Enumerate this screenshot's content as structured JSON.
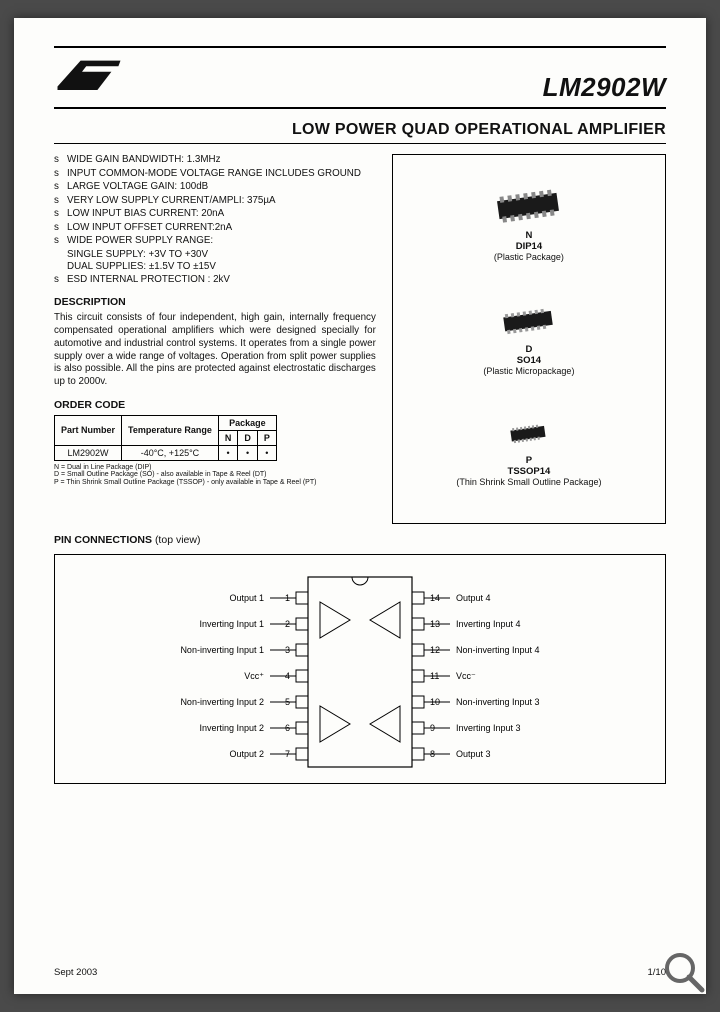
{
  "header": {
    "part_number": "LM2902W",
    "title": "LOW POWER QUAD OPERATIONAL AMPLIFIER"
  },
  "features": [
    "WIDE GAIN BANDWIDTH: 1.3MHz",
    "INPUT COMMON-MODE VOLTAGE RANGE INCLUDES GROUND",
    "LARGE VOLTAGE GAIN: 100dB",
    "VERY LOW SUPPLY CURRENT/AMPLI: 375µA",
    "LOW INPUT BIAS CURRENT: 20nA",
    "LOW INPUT OFFSET CURRENT:2nA",
    "WIDE POWER SUPPLY RANGE:",
    "ESD INTERNAL PROTECTION : 2kV"
  ],
  "feature_sublines": {
    "supply_single": "SINGLE SUPPLY: +3V TO +30V",
    "supply_dual": "DUAL SUPPLIES: ±1.5V TO ±15V"
  },
  "description": {
    "heading": "DESCRIPTION",
    "text": "This circuit consists of four independent, high gain, internally frequency compensated operational amplifiers which were designed specially for automotive and industrial control systems. It operates from a single power supply over a wide range of voltages. Operation from split power supplies is also possible. All the pins are protected against electrostatic discharges up to 2000v."
  },
  "packages": [
    {
      "code": "N",
      "name": "DIP14",
      "desc": "(Plastic Package)"
    },
    {
      "code": "D",
      "name": "SO14",
      "desc": "(Plastic Micropackage)"
    },
    {
      "code": "P",
      "name": "TSSOP14",
      "desc": "(Thin Shrink Small Outline Package)"
    }
  ],
  "order": {
    "heading": "ORDER CODE",
    "columns": {
      "part": "Part Number",
      "temp": "Temperature Range",
      "pkg": "Package",
      "n": "N",
      "d": "D",
      "p": "P"
    },
    "row": {
      "part": "LM2902W",
      "temp": "-40°C, +125°C",
      "n": "•",
      "d": "•",
      "p": "•"
    },
    "note": "N = Dual in Line Package (DIP)\nD = Small Outline Package (SO) - also available in Tape & Reel (DT)\nP = Thin Shrink Small Outline Package (TSSOP) - only available in Tape & Reel (PT)"
  },
  "pinout": {
    "heading": "PIN CONNECTIONS",
    "sub": "(top view)",
    "left_pins": [
      {
        "n": "1",
        "label": "Output 1"
      },
      {
        "n": "2",
        "label": "Inverting Input 1"
      },
      {
        "n": "3",
        "label": "Non-inverting Input 1"
      },
      {
        "n": "4",
        "label": "Vcc⁺"
      },
      {
        "n": "5",
        "label": "Non-inverting Input 2"
      },
      {
        "n": "6",
        "label": "Inverting Input 2"
      },
      {
        "n": "7",
        "label": "Output 2"
      }
    ],
    "right_pins": [
      {
        "n": "14",
        "label": "Output 4"
      },
      {
        "n": "13",
        "label": "Inverting Input 4"
      },
      {
        "n": "12",
        "label": "Non-inverting Input 4"
      },
      {
        "n": "11",
        "label": "Vcc⁻"
      },
      {
        "n": "10",
        "label": "Non-inverting Input 3"
      },
      {
        "n": "9",
        "label": "Inverting Input 3"
      },
      {
        "n": "8",
        "label": "Output 3"
      }
    ]
  },
  "footer": {
    "date": "Sept 2003",
    "page": "1/10"
  },
  "colors": {
    "page_bg": "#fdfdfb",
    "text": "#111",
    "rule": "#000",
    "chip_dark": "#1a1a1a"
  }
}
